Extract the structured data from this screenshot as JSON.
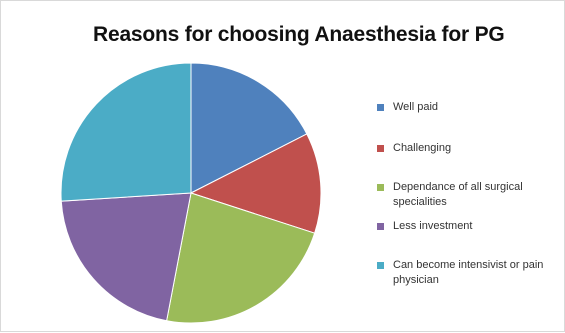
{
  "chart_data": {
    "type": "pie",
    "title": "Reasons for choosing Anaesthesia for PG",
    "categories": [
      "Well paid",
      "Challenging",
      "Dependance of all surgical specialities",
      "Less investment",
      "Can become intensivist or pain physician"
    ],
    "values": [
      17.5,
      12.5,
      23,
      21,
      26
    ],
    "colors": [
      "#4f81bd",
      "#c0504d",
      "#9bbb59",
      "#8064a2",
      "#4bacc6"
    ],
    "legend_position": "right"
  }
}
